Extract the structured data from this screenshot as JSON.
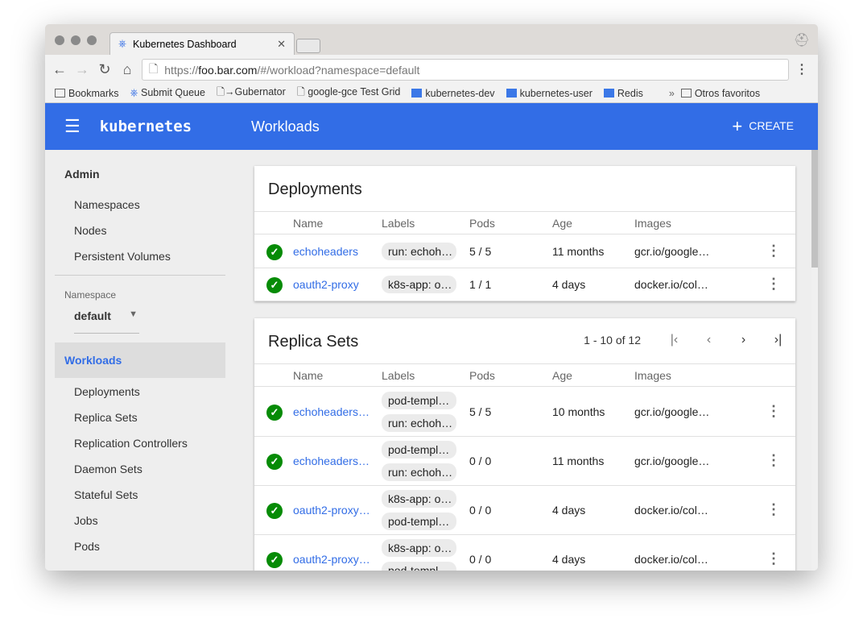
{
  "browser": {
    "tab_title": "Kubernetes Dashboard",
    "url_prefix": "https://",
    "url_host": "foo.bar.com",
    "url_path": "/#/workload?namespace=default",
    "bookmarks": [
      "Bookmarks",
      "Submit Queue",
      "→Gubernator",
      "google-gce Test Grid",
      "kubernetes-dev",
      "kubernetes-user",
      "Redis"
    ],
    "more": "»",
    "other": "Otros favoritos"
  },
  "header": {
    "logo": "kubernetes",
    "title": "Workloads",
    "create": "CREATE",
    "color": "#326de6"
  },
  "sidebar": {
    "admin": "Admin",
    "admin_items": [
      "Namespaces",
      "Nodes",
      "Persistent Volumes"
    ],
    "namespace_label": "Namespace",
    "namespace_value": "default",
    "workloads": "Workloads",
    "workload_items": [
      "Deployments",
      "Replica Sets",
      "Replication Controllers",
      "Daemon Sets",
      "Stateful Sets",
      "Jobs",
      "Pods"
    ]
  },
  "columns": [
    "Name",
    "Labels",
    "Pods",
    "Age",
    "Images"
  ],
  "deployments": {
    "title": "Deployments",
    "rows": [
      {
        "name": "echoheaders",
        "labels": [
          "run: echoh…"
        ],
        "pods": "5 / 5",
        "age": "11 months",
        "images": "gcr.io/google…"
      },
      {
        "name": "oauth2-proxy",
        "labels": [
          "k8s-app: o…"
        ],
        "pods": "1 / 1",
        "age": "4 days",
        "images": "docker.io/col…"
      }
    ]
  },
  "replica_sets": {
    "title": "Replica Sets",
    "pagination": "1 - 10 of 12",
    "rows": [
      {
        "name": "echoheaders…",
        "labels": [
          "pod-templ…",
          "run: echoh…"
        ],
        "pods": "5 / 5",
        "age": "10 months",
        "images": "gcr.io/google…"
      },
      {
        "name": "echoheaders…",
        "labels": [
          "pod-templ…",
          "run: echoh…"
        ],
        "pods": "0 / 0",
        "age": "11 months",
        "images": "gcr.io/google…"
      },
      {
        "name": "oauth2-proxy…",
        "labels": [
          "k8s-app: o…",
          "pod-templ…"
        ],
        "pods": "0 / 0",
        "age": "4 days",
        "images": "docker.io/col…"
      },
      {
        "name": "oauth2-proxy…",
        "labels": [
          "k8s-app: o…",
          "pod-templ…"
        ],
        "pods": "0 / 0",
        "age": "4 days",
        "images": "docker.io/col…"
      }
    ]
  }
}
